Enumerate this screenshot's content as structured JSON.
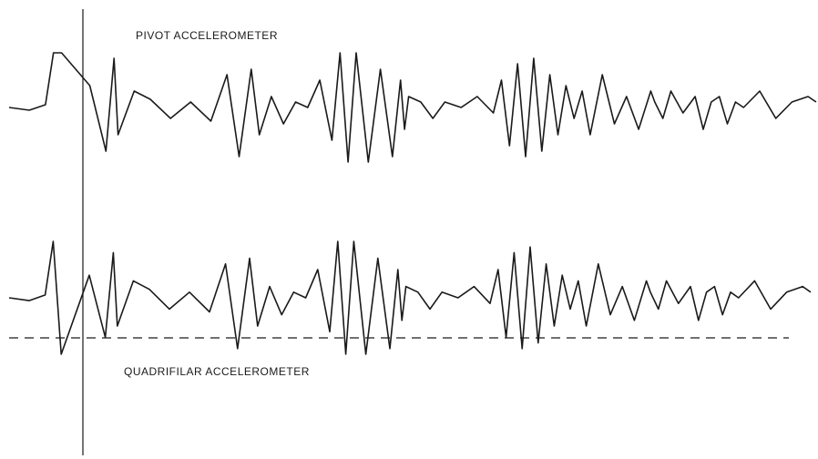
{
  "chart_data": [
    {
      "type": "line",
      "series": [
        {
          "name": "PIVOT ACCELEROMETER",
          "x": [
            0.0,
            0.25,
            0.45,
            0.55,
            0.65,
            1.0,
            1.2,
            1.3,
            1.35,
            1.55,
            1.75,
            2.0,
            2.25,
            2.5,
            2.7,
            2.85,
            3.0,
            3.1,
            3.25,
            3.4,
            3.55,
            3.7,
            3.85,
            4.0,
            4.1,
            4.2,
            4.3,
            4.45,
            4.6,
            4.75,
            4.85,
            4.9,
            4.95,
            5.1,
            5.25,
            5.4,
            5.6,
            5.8,
            6.0,
            6.1,
            6.2,
            6.3,
            6.4,
            6.5,
            6.6,
            6.7,
            6.8,
            6.9,
            7.0,
            7.1,
            7.2,
            7.35,
            7.5,
            7.65,
            7.8,
            7.95,
            8.0,
            8.1,
            8.2,
            8.35,
            8.5,
            8.6,
            8.7,
            8.8,
            8.9,
            9.0,
            9.1,
            9.3,
            9.5,
            9.7,
            9.9,
            10.0
          ],
          "values": [
            0.0,
            -0.05,
            0.05,
            1.0,
            1.0,
            0.4,
            -0.8,
            0.9,
            -0.5,
            0.3,
            0.15,
            -0.2,
            0.1,
            -0.25,
            0.6,
            -0.9,
            0.7,
            -0.5,
            0.2,
            -0.3,
            0.1,
            0.0,
            0.5,
            -0.6,
            1.0,
            -1.0,
            1.0,
            -1.0,
            0.7,
            -0.9,
            0.5,
            -0.4,
            0.2,
            0.1,
            -0.2,
            0.1,
            0.0,
            0.2,
            -0.1,
            0.5,
            -0.7,
            0.8,
            -0.9,
            0.9,
            -0.8,
            0.6,
            -0.5,
            0.4,
            -0.2,
            0.3,
            -0.5,
            0.6,
            -0.3,
            0.2,
            -0.4,
            0.3,
            0.1,
            -0.2,
            0.3,
            -0.1,
            0.2,
            -0.4,
            0.1,
            0.2,
            -0.3,
            0.1,
            0.0,
            0.3,
            -0.2,
            0.1,
            0.2,
            0.1
          ]
        }
      ]
    },
    {
      "type": "line",
      "series": [
        {
          "name": "QUADRIFILAR ACCELEROMETER",
          "x": [
            0.0,
            0.25,
            0.45,
            0.55,
            0.65,
            1.0,
            1.2,
            1.3,
            1.35,
            1.55,
            1.75,
            2.0,
            2.25,
            2.5,
            2.7,
            2.85,
            3.0,
            3.1,
            3.25,
            3.4,
            3.55,
            3.7,
            3.85,
            4.0,
            4.1,
            4.2,
            4.3,
            4.45,
            4.6,
            4.75,
            4.85,
            4.9,
            4.95,
            5.1,
            5.25,
            5.4,
            5.6,
            5.8,
            6.0,
            6.1,
            6.2,
            6.3,
            6.4,
            6.5,
            6.6,
            6.7,
            6.8,
            6.9,
            7.0,
            7.1,
            7.2,
            7.35,
            7.5,
            7.65,
            7.8,
            7.95,
            8.0,
            8.1,
            8.2,
            8.35,
            8.5,
            8.6,
            8.7,
            8.8,
            8.9,
            9.0,
            9.1,
            9.3,
            9.5,
            9.7,
            9.9,
            10.0
          ],
          "values": [
            0.0,
            -0.05,
            0.05,
            1.0,
            -1.0,
            0.4,
            -0.7,
            0.8,
            -0.5,
            0.3,
            0.15,
            -0.2,
            0.1,
            -0.25,
            0.6,
            -0.9,
            0.7,
            -0.5,
            0.2,
            -0.3,
            0.1,
            0.0,
            0.5,
            -0.6,
            1.0,
            -1.0,
            1.0,
            -1.0,
            0.7,
            -0.9,
            0.5,
            -0.4,
            0.2,
            0.1,
            -0.2,
            0.1,
            0.0,
            0.2,
            -0.1,
            0.5,
            -0.7,
            0.8,
            -0.9,
            0.9,
            -0.8,
            0.6,
            -0.5,
            0.4,
            -0.2,
            0.3,
            -0.5,
            0.6,
            -0.3,
            0.2,
            -0.4,
            0.3,
            0.1,
            -0.2,
            0.3,
            -0.1,
            0.2,
            -0.4,
            0.1,
            0.2,
            -0.3,
            0.1,
            0.0,
            0.3,
            -0.2,
            0.1,
            0.2,
            0.1
          ]
        }
      ]
    }
  ],
  "colors": {
    "trace": "#1a1a1a",
    "background": "#ffffff"
  }
}
